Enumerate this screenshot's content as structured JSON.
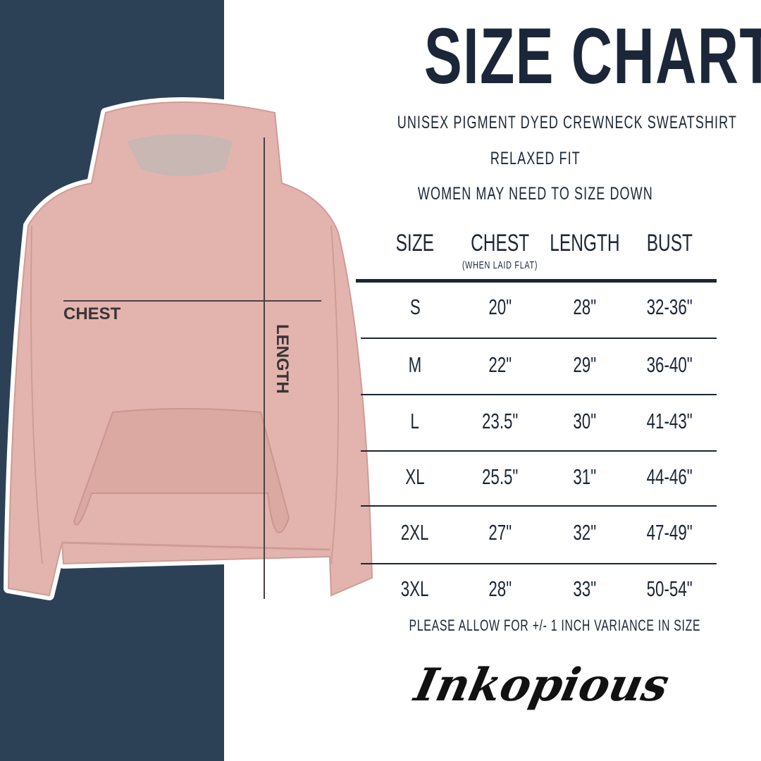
{
  "title": "SIZE CHART",
  "subtitles": [
    "UNISEX PIGMENT DYED CREWNECK SWEATSHIRT",
    "RELAXED FIT",
    "WOMEN MAY NEED TO SIZE DOWN"
  ],
  "image_labels": {
    "chest": "CHEST",
    "length": "LENGTH"
  },
  "table": {
    "headers": [
      "SIZE",
      "CHEST",
      "LENGTH",
      "BUST"
    ],
    "chest_note": "(WHEN LAID FLAT)",
    "rows": [
      [
        "S",
        "20\"",
        "28\"",
        "32-36\""
      ],
      [
        "M",
        "22\"",
        "29\"",
        "36-40\""
      ],
      [
        "L",
        "23.5\"",
        "30\"",
        "41-43\""
      ],
      [
        "XL",
        "25.5\"",
        "31\"",
        "44-46\""
      ],
      [
        "2XL",
        "27\"",
        "32\"",
        "47-49\""
      ],
      [
        "3XL",
        "28\"",
        "33\"",
        "50-54\""
      ]
    ]
  },
  "footnote": "PLEASE ALLOW FOR +/- 1 INCH VARIANCE IN SIZE",
  "brand": "Inkopious",
  "colors": {
    "navy": "#2c4155",
    "text": "#1b2638",
    "hoodie": "#e3b4ad"
  }
}
